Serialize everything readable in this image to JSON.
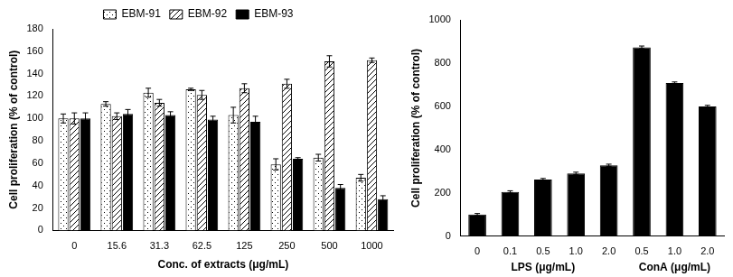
{
  "chart_data": [
    {
      "type": "bar",
      "x_label": "Conc. of extracts (μg/mL)",
      "y_label": "Cell proliferation (% of control)",
      "categories": [
        "0",
        "15.6",
        "31.3",
        "62.5",
        "125",
        "250",
        "500",
        "1000"
      ],
      "series": [
        {
          "name": "EBM-91",
          "color": "#000000",
          "values": [
            100,
            113,
            123,
            126,
            103,
            59,
            65,
            47
          ],
          "errors": [
            4,
            2,
            4,
            1,
            7,
            5,
            3,
            3
          ]
        },
        {
          "name": "EBM-92",
          "color": "#000000",
          "values": [
            100,
            102,
            114,
            121,
            127,
            131,
            151,
            152
          ],
          "errors": [
            5,
            3,
            3,
            4,
            4,
            4,
            5,
            2
          ]
        },
        {
          "name": "EBM-93",
          "color": "#000000",
          "values": [
            100,
            104,
            103,
            99,
            97,
            64,
            38,
            28
          ],
          "errors": [
            5,
            4,
            3,
            3,
            5,
            1,
            3,
            3
          ]
        }
      ],
      "ylim": [
        0,
        180
      ],
      "yticks": [
        0,
        20,
        40,
        60,
        80,
        100,
        120,
        140,
        160,
        180
      ],
      "grid": false,
      "legend": "top"
    },
    {
      "type": "bar",
      "y_label": "Cell proliferation (% of control)",
      "categories": [
        "0",
        "0.1",
        "0.5",
        "1.0",
        "2.0",
        "0.5",
        "1.0",
        "2.0"
      ],
      "x_groups": [
        {
          "label": "LPS (μg/mL)",
          "count": 5
        },
        {
          "label": "ConA (μg/mL)",
          "count": 3
        }
      ],
      "values": [
        100,
        205,
        262,
        290,
        328,
        873,
        708,
        600
      ],
      "errors": [
        5,
        5,
        5,
        6,
        5,
        6,
        5,
        5
      ],
      "color": "#000000",
      "ylim": [
        0,
        1000
      ],
      "yticks": [
        0,
        200,
        400,
        600,
        800,
        1000
      ],
      "grid": false
    }
  ]
}
